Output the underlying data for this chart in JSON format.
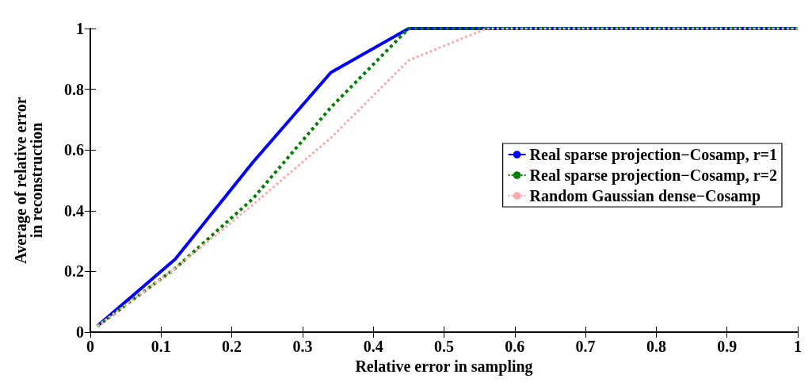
{
  "chart_data": {
    "type": "line",
    "xlabel": "Relative error in sampling",
    "ylabel": "Average of relative error\nin reconstruction",
    "x": [
      0.01,
      0.12,
      0.23,
      0.34,
      0.45,
      0.56,
      0.67,
      0.78,
      0.89,
      1.0
    ],
    "series": [
      {
        "name": "Real sparse projection−Cosamp, r=1",
        "color": "#0000ff",
        "line_style": "solid",
        "values": [
          0.02,
          0.24,
          0.56,
          0.855,
          1,
          1,
          1,
          1,
          1,
          1
        ]
      },
      {
        "name": "Real sparse projection−Cosamp, r=2",
        "color": "#008000",
        "line_style": "dotted",
        "values": [
          0.02,
          0.21,
          0.44,
          0.74,
          1,
          1,
          1,
          1,
          1,
          1
        ]
      },
      {
        "name": "Random Gaussian dense−Cosamp",
        "color": "#ffaaaa",
        "line_style": "dotted",
        "values": [
          0.02,
          0.21,
          0.42,
          0.64,
          0.895,
          1,
          1,
          1,
          1,
          1
        ]
      }
    ],
    "xlim": [
      0,
      1
    ],
    "xticks": [
      0,
      0.1,
      0.2,
      0.3,
      0.4,
      0.5,
      0.6,
      0.7,
      0.8,
      0.9,
      1
    ],
    "ylim": [
      0,
      1
    ],
    "yticks": [
      0,
      0.2,
      0.4,
      0.6,
      0.8,
      1
    ],
    "grid": false,
    "legend": "right",
    "marker": "none"
  }
}
